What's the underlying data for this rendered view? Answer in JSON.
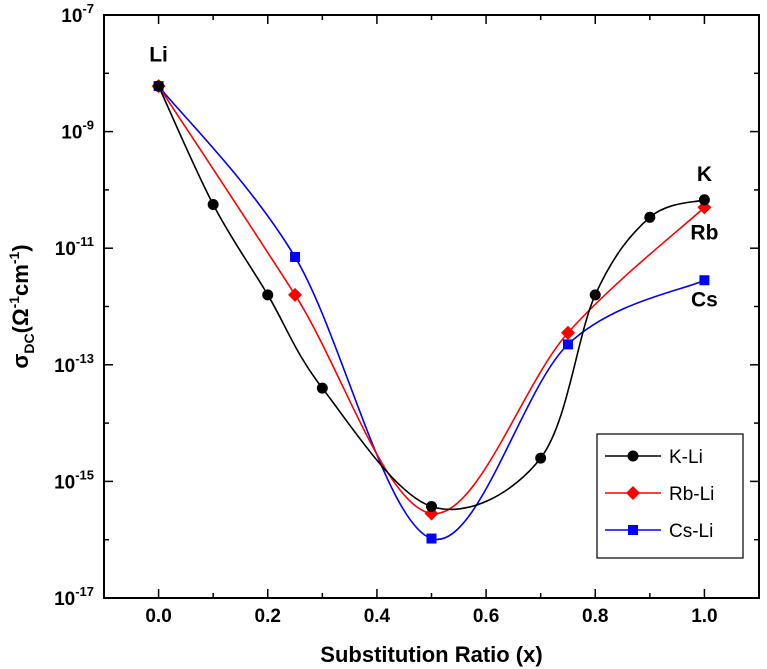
{
  "chart_data": {
    "type": "line",
    "title": "",
    "xlabel": "Substitution Ratio (x)",
    "ylabel": {
      "main": "σ",
      "sub": "DC",
      "rest": "(Ω",
      "sup1": "-1",
      "mid": "cm",
      "sup2": "-1",
      "close": ")"
    },
    "xlim": [
      -0.1,
      1.1
    ],
    "ylim_log10": [
      -17,
      -7
    ],
    "x_ticks": [
      0.0,
      0.2,
      0.4,
      0.6,
      0.8,
      1.0
    ],
    "x_tick_labels": [
      "0.0",
      "0.2",
      "0.4",
      "0.6",
      "0.8",
      "1.0"
    ],
    "y_ticks": [
      {
        "exp": -7,
        "base": "10",
        "sup": "-7"
      },
      {
        "exp": -9,
        "base": "10",
        "sup": "-9"
      },
      {
        "exp": -11,
        "base": "10",
        "sup": "-11"
      },
      {
        "exp": -13,
        "base": "10",
        "sup": "-13"
      },
      {
        "exp": -15,
        "base": "10",
        "sup": "-15"
      },
      {
        "exp": -17,
        "base": "10",
        "sup": "-17"
      }
    ],
    "series": [
      {
        "name": "K-Li",
        "color": "#000000",
        "marker": "circle",
        "x": [
          0.0,
          0.1,
          0.2,
          0.3,
          0.5,
          0.7,
          0.8,
          0.9,
          1.0
        ],
        "log10y": [
          -8.22,
          -10.25,
          -11.8,
          -13.4,
          -15.43,
          -14.6,
          -11.8,
          -10.47,
          -10.17
        ]
      },
      {
        "name": "Rb-Li",
        "color": "#ff0000",
        "marker": "diamond",
        "x": [
          0.0,
          0.25,
          0.5,
          0.75,
          1.0
        ],
        "log10y": [
          -8.22,
          -11.8,
          -15.55,
          -12.45,
          -10.3
        ]
      },
      {
        "name": "Cs-Li",
        "color": "#0000ff",
        "marker": "square",
        "x": [
          0.0,
          0.25,
          0.5,
          0.75,
          1.0
        ],
        "log10y": [
          -8.22,
          -11.15,
          -15.98,
          -12.65,
          -11.55
        ]
      }
    ],
    "annotations": [
      {
        "text": "Li",
        "x": 0.0,
        "log10y": -7.8
      },
      {
        "text": "K",
        "x": 1.0,
        "log10y": -9.85
      },
      {
        "text": "Rb",
        "x": 1.0,
        "log10y": -10.85
      },
      {
        "text": "Cs",
        "x": 1.0,
        "log10y": -12.0
      }
    ],
    "legend": {
      "position": "bottom-right",
      "entries": [
        "K-Li",
        "Rb-Li",
        "Cs-Li"
      ]
    },
    "grid": false
  }
}
